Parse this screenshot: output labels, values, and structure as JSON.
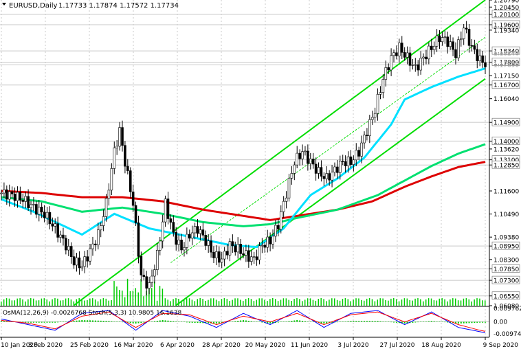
{
  "header": {
    "symbol": "EURUSD,Daily",
    "ohlc": "1.17733 1.17874 1.17572 1.17734"
  },
  "colors": {
    "background": "#ffffff",
    "grid": "#c8c8c8",
    "bull_candle": "#ffffff",
    "bear_candle": "#000000",
    "candle_outline": "#000000",
    "channel": "#00dd00",
    "ema_fast": "#00e0ff",
    "ema_mid": "#00e070",
    "ema_slow": "#dd0000",
    "volume": "#00cc00",
    "price_label_bg": "#ffffff",
    "macd_line": "#0000ff",
    "signal_line": "#ff0000",
    "osma_hist": "#00cc00"
  },
  "chart_data": {
    "type": "candlestick",
    "instrument": "EURUSD",
    "timeframe": "Daily",
    "ylim": [
      1.0608,
      1.2079
    ],
    "price_axis_ticks": [
      "1.20790",
      "1.20450",
      "1.20100",
      "1.19600",
      "1.19340",
      "1.18340",
      "1.17800",
      "1.17150",
      "1.16700",
      "1.16040",
      "1.14900",
      "1.13620",
      "1.14000",
      "1.13100",
      "1.12850",
      "1.11600",
      "1.10490",
      "1.09380",
      "1.08950",
      "1.08300",
      "1.07850",
      "1.07300",
      "1.06550",
      "1.06080"
    ],
    "price_axis_ticks_muted": [
      "1.18240",
      "1.17734",
      "1.17690"
    ],
    "level_lines": [
      1.201,
      1.196,
      1.1834,
      1.178,
      1.1767,
      1.167,
      1.149,
      1.14,
      1.131,
      1.1285,
      1.0895,
      1.0785,
      1.073,
      1.0655
    ],
    "time_axis_labels": [
      "10 Jan 2020",
      "3 Feb 2020",
      "25 Feb 2020",
      "16 Mar 2020",
      "6 Apr 2020",
      "28 Apr 2020",
      "20 May 2020",
      "11 Jun 2020",
      "3 Jul 2020",
      "27 Jul 2020",
      "18 Aug 2020",
      "9 Sep 2020"
    ],
    "close_path": [
      [
        0,
        1.115
      ],
      [
        4,
        1.114
      ],
      [
        8,
        1.112
      ],
      [
        12,
        1.108
      ],
      [
        16,
        1.105
      ],
      [
        20,
        1.098
      ],
      [
        24,
        1.09
      ],
      [
        27,
        1.082
      ],
      [
        30,
        1.08
      ],
      [
        33,
        1.087
      ],
      [
        36,
        1.095
      ],
      [
        39,
        1.11
      ],
      [
        42,
        1.135
      ],
      [
        44,
        1.145
      ],
      [
        46,
        1.13
      ],
      [
        49,
        1.11
      ],
      [
        52,
        1.075
      ],
      [
        55,
        1.07
      ],
      [
        58,
        1.085
      ],
      [
        61,
        1.11
      ],
      [
        64,
        1.095
      ],
      [
        67,
        1.088
      ],
      [
        70,
        1.095
      ],
      [
        73,
        1.098
      ],
      [
        76,
        1.092
      ],
      [
        79,
        1.085
      ],
      [
        82,
        1.083
      ],
      [
        85,
        1.09
      ],
      [
        88,
        1.088
      ],
      [
        91,
        1.085
      ],
      [
        94,
        1.083
      ],
      [
        97,
        1.09
      ],
      [
        100,
        1.092
      ],
      [
        103,
        1.1
      ],
      [
        106,
        1.115
      ],
      [
        109,
        1.13
      ],
      [
        112,
        1.135
      ],
      [
        115,
        1.13
      ],
      [
        118,
        1.125
      ],
      [
        121,
        1.122
      ],
      [
        124,
        1.126
      ],
      [
        127,
        1.13
      ],
      [
        130,
        1.13
      ],
      [
        133,
        1.135
      ],
      [
        136,
        1.145
      ],
      [
        139,
        1.155
      ],
      [
        142,
        1.17
      ],
      [
        145,
        1.18
      ],
      [
        148,
        1.185
      ],
      [
        151,
        1.18
      ],
      [
        154,
        1.175
      ],
      [
        157,
        1.18
      ],
      [
        160,
        1.185
      ],
      [
        163,
        1.19
      ],
      [
        166,
        1.188
      ],
      [
        169,
        1.182
      ],
      [
        172,
        1.195
      ],
      [
        175,
        1.185
      ],
      [
        178,
        1.179
      ],
      [
        180,
        1.1773
      ]
    ],
    "ema_fast_path": [
      [
        0,
        1.112
      ],
      [
        12,
        1.106
      ],
      [
        30,
        1.095
      ],
      [
        42,
        1.105
      ],
      [
        55,
        1.098
      ],
      [
        70,
        1.094
      ],
      [
        85,
        1.09
      ],
      [
        95,
        1.089
      ],
      [
        105,
        1.098
      ],
      [
        115,
        1.114
      ],
      [
        125,
        1.122
      ],
      [
        135,
        1.132
      ],
      [
        145,
        1.148
      ],
      [
        150,
        1.16
      ],
      [
        160,
        1.166
      ],
      [
        170,
        1.171
      ],
      [
        180,
        1.175
      ]
    ],
    "ema_mid_path": [
      [
        0,
        1.113
      ],
      [
        15,
        1.111
      ],
      [
        30,
        1.106
      ],
      [
        45,
        1.108
      ],
      [
        60,
        1.105
      ],
      [
        75,
        1.101
      ],
      [
        90,
        1.099
      ],
      [
        100,
        1.1
      ],
      [
        110,
        1.103
      ],
      [
        125,
        1.107
      ],
      [
        140,
        1.114
      ],
      [
        150,
        1.121
      ],
      [
        160,
        1.128
      ],
      [
        170,
        1.134
      ],
      [
        180,
        1.1385
      ]
    ],
    "ema_slow_path": [
      [
        0,
        1.116
      ],
      [
        15,
        1.115
      ],
      [
        30,
        1.113
      ],
      [
        45,
        1.113
      ],
      [
        60,
        1.111
      ],
      [
        75,
        1.107
      ],
      [
        90,
        1.104
      ],
      [
        100,
        1.102
      ],
      [
        110,
        1.104
      ],
      [
        125,
        1.107
      ],
      [
        138,
        1.111
      ],
      [
        150,
        1.118
      ],
      [
        160,
        1.123
      ],
      [
        170,
        1.1275
      ],
      [
        180,
        1.13
      ]
    ],
    "channel_lines": [
      {
        "from": [
          27,
          1.061
        ],
        "to": [
          180,
          1.2079
        ]
      },
      {
        "from": [
          65,
          1.061
        ],
        "to": [
          180,
          1.17
        ]
      },
      {
        "from": [
          63,
          1.0815
        ],
        "to": [
          180,
          1.19
        ]
      }
    ],
    "indicator": {
      "label": "OsMA(12,26,9) -0.0026768  Stoch(5,3,3) 10.9805 16.1638",
      "right_ticks": [
        "0.009762",
        "0.00",
        "-0.009746"
      ],
      "ylim": [
        -0.01,
        0.01
      ],
      "stoch_main": [
        [
          0,
          60
        ],
        [
          10,
          40
        ],
        [
          20,
          20
        ],
        [
          30,
          80
        ],
        [
          40,
          90
        ],
        [
          50,
          20
        ],
        [
          60,
          90
        ],
        [
          70,
          70
        ],
        [
          80,
          30
        ],
        [
          90,
          80
        ],
        [
          100,
          40
        ],
        [
          110,
          90
        ],
        [
          120,
          30
        ],
        [
          130,
          80
        ],
        [
          140,
          90
        ],
        [
          150,
          40
        ],
        [
          160,
          85
        ],
        [
          170,
          30
        ],
        [
          178,
          15
        ],
        [
          180,
          11
        ]
      ],
      "stoch_signal": [
        [
          0,
          55
        ],
        [
          10,
          45
        ],
        [
          20,
          25
        ],
        [
          30,
          70
        ],
        [
          40,
          85
        ],
        [
          50,
          30
        ],
        [
          60,
          80
        ],
        [
          70,
          75
        ],
        [
          80,
          40
        ],
        [
          90,
          70
        ],
        [
          100,
          50
        ],
        [
          110,
          80
        ],
        [
          120,
          40
        ],
        [
          130,
          75
        ],
        [
          140,
          85
        ],
        [
          150,
          50
        ],
        [
          160,
          80
        ],
        [
          170,
          40
        ],
        [
          178,
          20
        ],
        [
          180,
          16
        ]
      ]
    }
  }
}
